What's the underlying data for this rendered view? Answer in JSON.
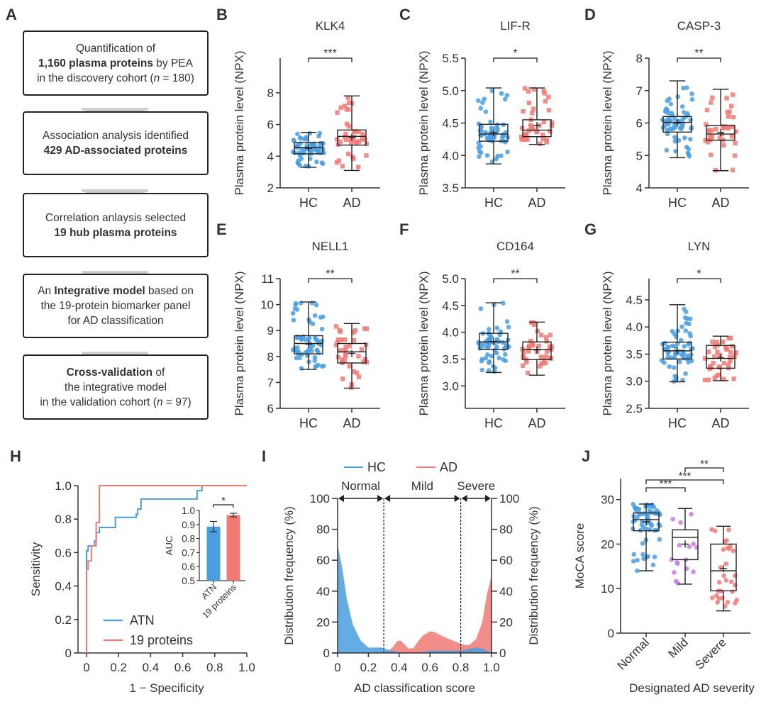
{
  "panel_labels": [
    "A",
    "B",
    "C",
    "D",
    "E",
    "F",
    "G",
    "H",
    "I",
    "J"
  ],
  "flowchart": {
    "boxes": [
      {
        "lines": [
          [
            {
              "t": "Quantification of",
              "b": false
            }
          ],
          [
            {
              "t": "1,160 plasma proteins",
              "b": true
            },
            {
              "t": " by PEA",
              "b": false
            }
          ],
          [
            {
              "t": "in the discovery cohort (",
              "b": false
            },
            {
              "t": "n",
              "i": true
            },
            {
              "t": " = 180)",
              "b": false
            }
          ]
        ]
      },
      {
        "lines": [
          [
            {
              "t": "Association analysis identified",
              "b": false
            }
          ],
          [
            {
              "t": "429 AD-associated proteins",
              "b": true
            }
          ]
        ]
      },
      {
        "lines": [
          [
            {
              "t": "Correlation anlaysis selected",
              "b": false
            }
          ],
          [
            {
              "t": "19 hub plasma proteins",
              "b": true
            }
          ]
        ]
      },
      {
        "lines": [
          [
            {
              "t": "An ",
              "b": false
            },
            {
              "t": "Integrative model",
              "b": true
            },
            {
              "t": " based on",
              "b": false
            }
          ],
          [
            {
              "t": "the 19-protein biomarker panel",
              "b": false
            }
          ],
          [
            {
              "t": "for AD classification",
              "b": false
            }
          ]
        ]
      },
      {
        "lines": [
          [
            {
              "t": "Cross-validation",
              "b": true
            },
            {
              "t": " of",
              "b": false
            }
          ],
          [
            {
              "t": "the integrative model",
              "b": false
            }
          ],
          [
            {
              "t": "in the validation cohort (",
              "b": false
            },
            {
              "t": "n",
              "i": true
            },
            {
              "t": " = 97)",
              "b": false
            }
          ]
        ]
      }
    ]
  },
  "colors": {
    "hc": "#4a9ee0",
    "ad": "#f07a74",
    "mild": "#c77de0",
    "axis": "#333333"
  },
  "chart_data": [
    {
      "id": "B",
      "type": "box",
      "title": "KLK4",
      "ylabel": "Plasma protein level (NPX)",
      "categories": [
        "HC",
        "AD"
      ],
      "ylim": [
        2,
        9
      ],
      "yticks": [
        2,
        4,
        6,
        8
      ],
      "yticklabels": [
        "2",
        "4",
        "6",
        "8"
      ],
      "significance": "***",
      "groups": [
        {
          "name": "HC",
          "min": 3.3,
          "q1": 4.15,
          "median": 4.55,
          "q3": 4.85,
          "max": 5.5,
          "mean": 4.5
        },
        {
          "name": "AD",
          "min": 3.1,
          "q1": 4.7,
          "median": 5.25,
          "q3": 5.65,
          "max": 7.8,
          "mean": 5.2
        }
      ]
    },
    {
      "id": "C",
      "type": "box",
      "title": "LIF-R",
      "ylabel": "Plasma protein level (NPX)",
      "categories": [
        "HC",
        "AD"
      ],
      "ylim": [
        3.5,
        5.5
      ],
      "yticks": [
        3.5,
        4.0,
        4.5,
        5.0,
        5.5
      ],
      "yticklabels": [
        "3.5",
        "4.0",
        "4.5",
        "5.0",
        "5.5"
      ],
      "significance": "*",
      "groups": [
        {
          "name": "HC",
          "min": 3.87,
          "q1": 4.22,
          "median": 4.33,
          "q3": 4.48,
          "max": 5.04,
          "mean": 4.35
        },
        {
          "name": "AD",
          "min": 4.17,
          "q1": 4.29,
          "median": 4.39,
          "q3": 4.55,
          "max": 5.04,
          "mean": 4.46
        }
      ]
    },
    {
      "id": "D",
      "type": "box",
      "title": "CASP-3",
      "ylabel": "Plasma protein level (NPX)",
      "categories": [
        "HC",
        "AD"
      ],
      "ylim": [
        4,
        8
      ],
      "yticks": [
        4,
        5,
        6,
        7,
        8
      ],
      "yticklabels": [
        "4",
        "5",
        "6",
        "7",
        "8"
      ],
      "significance": "**",
      "groups": [
        {
          "name": "HC",
          "min": 4.93,
          "q1": 5.72,
          "median": 6.02,
          "q3": 6.2,
          "max": 7.3,
          "mean": 6.0
        },
        {
          "name": "AD",
          "min": 4.53,
          "q1": 5.47,
          "median": 5.66,
          "q3": 5.92,
          "max": 7.04,
          "mean": 5.7
        }
      ]
    },
    {
      "id": "E",
      "type": "box",
      "title": "NELL1",
      "ylabel": "Plasma protein level (NPX)",
      "categories": [
        "HC",
        "AD"
      ],
      "ylim": [
        6,
        11
      ],
      "yticks": [
        6,
        7,
        8,
        9,
        10,
        11
      ],
      "yticklabels": [
        "6",
        "7",
        "8",
        "9",
        "10",
        "11"
      ],
      "significance": "**",
      "groups": [
        {
          "name": "HC",
          "min": 7.5,
          "q1": 8.1,
          "median": 8.5,
          "q3": 8.8,
          "max": 10.1,
          "mean": 8.48
        },
        {
          "name": "AD",
          "min": 6.78,
          "q1": 7.75,
          "median": 8.18,
          "q3": 8.5,
          "max": 9.27,
          "mean": 8.12
        }
      ]
    },
    {
      "id": "F",
      "type": "box",
      "title": "CD164",
      "ylabel": "Plasma protein level (NPX)",
      "categories": [
        "HC",
        "AD"
      ],
      "ylim": [
        2.8,
        5.0
      ],
      "yticks": [
        3.0,
        3.5,
        4.0,
        4.5,
        5.0
      ],
      "yticklabels": [
        "3.0",
        "3.5",
        "4.0",
        "4.5",
        "5.0"
      ],
      "significance": "**",
      "groups": [
        {
          "name": "HC",
          "min": 3.25,
          "q1": 3.68,
          "median": 3.82,
          "q3": 3.98,
          "max": 4.55,
          "mean": 3.83
        },
        {
          "name": "AD",
          "min": 3.2,
          "q1": 3.49,
          "median": 3.68,
          "q3": 3.82,
          "max": 4.19,
          "mean": 3.67
        }
      ]
    },
    {
      "id": "G",
      "type": "box",
      "title": "LYN",
      "ylabel": "Plasma protein level (NPX)",
      "categories": [
        "HC",
        "AD"
      ],
      "ylim": [
        2.5,
        4.8
      ],
      "yticks": [
        2.5,
        3.0,
        3.5,
        4.0,
        4.5
      ],
      "yticklabels": [
        "2.5",
        "3.0",
        "3.5",
        "4.0",
        "4.5"
      ],
      "significance": "*",
      "groups": [
        {
          "name": "HC",
          "min": 2.99,
          "q1": 3.41,
          "median": 3.56,
          "q3": 3.72,
          "max": 4.41,
          "mean": 3.57
        },
        {
          "name": "AD",
          "min": 3.01,
          "q1": 3.24,
          "median": 3.42,
          "q3": 3.66,
          "max": 3.83,
          "mean": 3.43
        }
      ]
    },
    {
      "id": "H",
      "type": "line",
      "title": "",
      "xlabel": "1 − Specificity",
      "ylabel": "Sensitivity",
      "xlim": [
        0,
        1.0
      ],
      "ylim": [
        0,
        1.0
      ],
      "xticks": [
        0,
        0.2,
        0.4,
        0.6,
        0.8,
        1.0
      ],
      "xticklabels": [
        "0",
        "0.2",
        "0.4",
        "0.6",
        "0.8",
        "1.0"
      ],
      "yticks": [
        0,
        0.2,
        0.4,
        0.6,
        0.8,
        1.0
      ],
      "yticklabels": [
        "0",
        "0.2",
        "0.4",
        "0.6",
        "0.8",
        "1.0"
      ],
      "legend": {
        "position": "bottom-left",
        "entries": [
          "ATN",
          "19 proteins"
        ]
      },
      "series": [
        {
          "name": "ATN",
          "points": [
            [
              0,
              0
            ],
            [
              0,
              0.5
            ],
            [
              0,
              0.61
            ],
            [
              0.01,
              0.61
            ],
            [
              0.01,
              0.64
            ],
            [
              0.05,
              0.64
            ],
            [
              0.05,
              0.67
            ],
            [
              0.06,
              0.67
            ],
            [
              0.06,
              0.72
            ],
            [
              0.08,
              0.72
            ],
            [
              0.08,
              0.75
            ],
            [
              0.18,
              0.75
            ],
            [
              0.18,
              0.81
            ],
            [
              0.31,
              0.81
            ],
            [
              0.31,
              0.83
            ],
            [
              0.32,
              0.83
            ],
            [
              0.32,
              0.86
            ],
            [
              0.34,
              0.86
            ],
            [
              0.34,
              0.92
            ],
            [
              0.69,
              0.92
            ],
            [
              0.69,
              0.97
            ],
            [
              0.72,
              0.97
            ],
            [
              0.72,
              1.0
            ],
            [
              1.0,
              1.0
            ]
          ]
        },
        {
          "name": "19 proteins",
          "points": [
            [
              0,
              0
            ],
            [
              0,
              0.5
            ],
            [
              0.01,
              0.5
            ],
            [
              0.01,
              0.55
            ],
            [
              0.03,
              0.55
            ],
            [
              0.03,
              0.64
            ],
            [
              0.06,
              0.64
            ],
            [
              0.06,
              0.78
            ],
            [
              0.08,
              0.78
            ],
            [
              0.08,
              1.0
            ],
            [
              1.0,
              1.0
            ]
          ]
        }
      ],
      "inset": {
        "type": "bar",
        "ylabel": "AUC",
        "ylim": [
          0.5,
          1.0
        ],
        "yticks": [
          0.5,
          0.6,
          0.7,
          0.8,
          0.9,
          1.0
        ],
        "yticklabels": [
          "0.5",
          "0.6",
          "0.7",
          "0.8",
          "0.9",
          "1.0"
        ],
        "categories": [
          "ATN",
          "19 proteins"
        ],
        "values": [
          0.885,
          0.967
        ],
        "errors": [
          0.037,
          0.013
        ],
        "significance": "*"
      }
    },
    {
      "id": "I",
      "type": "area",
      "title": "",
      "xlabel": "AD classification score",
      "ylabel": "Distribution frequency (%)",
      "ylabel_right": "Distribution frequency (%)",
      "xlim": [
        0,
        1.0
      ],
      "ylim": [
        0,
        100
      ],
      "xticks": [
        0,
        0.2,
        0.4,
        0.6,
        0.8,
        1.0
      ],
      "xticklabels": [
        "0",
        "0.2",
        "0.4",
        "0.6",
        "0.8",
        "1.0"
      ],
      "yticks": [
        0,
        20,
        40,
        60,
        80,
        100
      ],
      "yticklabels": [
        "0",
        "20",
        "40",
        "60",
        "80",
        "100"
      ],
      "legend": {
        "position": "top",
        "entries": [
          "HC",
          "AD"
        ]
      },
      "thresholds": [
        0.3,
        0.8
      ],
      "regions": [
        "Normal",
        "Mild",
        "Severe"
      ],
      "series": [
        {
          "name": "HC",
          "x": [
            0,
            0.03,
            0.06,
            0.1,
            0.15,
            0.2,
            0.25,
            0.28,
            0.3,
            0.35,
            0.4,
            0.45,
            0.5,
            0.55,
            0.6,
            0.7,
            0.8,
            0.85,
            0.9,
            0.95,
            1.0
          ],
          "y": [
            70,
            55,
            35,
            18,
            8,
            3.5,
            3.5,
            3.5,
            3,
            1.5,
            0.5,
            0,
            0,
            0.5,
            1.5,
            1.5,
            1.5,
            2.5,
            3.5,
            2.5,
            0
          ]
        },
        {
          "name": "AD",
          "x": [
            0,
            0.3,
            0.33,
            0.36,
            0.39,
            0.41,
            0.43,
            0.46,
            0.49,
            0.52,
            0.55,
            0.6,
            0.63,
            0.7,
            0.75,
            0.8,
            0.83,
            0.86,
            0.9,
            0.94,
            0.97,
            1.0
          ],
          "y": [
            0,
            0,
            1,
            4,
            8,
            8,
            6,
            3,
            3,
            7,
            11,
            14,
            13.5,
            10,
            8,
            6,
            5,
            5.5,
            9,
            20,
            38,
            50
          ]
        }
      ]
    },
    {
      "id": "J",
      "type": "box",
      "title": "",
      "xlabel": "Designated AD severity",
      "ylabel": "MoCA score",
      "categories": [
        "Normal",
        "Mild",
        "Severe"
      ],
      "ylim": [
        0,
        35
      ],
      "yticks": [
        0,
        10,
        20,
        30
      ],
      "yticklabels": [
        "0",
        "10",
        "20",
        "30"
      ],
      "significance": [
        {
          "pair": [
            "Normal",
            "Mild"
          ],
          "label": "***"
        },
        {
          "pair": [
            "Normal",
            "Severe"
          ],
          "label": "***"
        },
        {
          "pair": [
            "Mild",
            "Severe"
          ],
          "label": "**"
        }
      ],
      "groups": [
        {
          "name": "Normal",
          "min": 14,
          "q1": 23,
          "median": 25.5,
          "q3": 27,
          "max": 29,
          "mean": 25
        },
        {
          "name": "Mild",
          "min": 11,
          "q1": 16.5,
          "median": 21.5,
          "q3": 23.2,
          "max": 28,
          "mean": 20
        },
        {
          "name": "Severe",
          "min": 5,
          "q1": 9.5,
          "median": 14,
          "q3": 20,
          "max": 24,
          "mean": 14.5
        }
      ]
    }
  ]
}
